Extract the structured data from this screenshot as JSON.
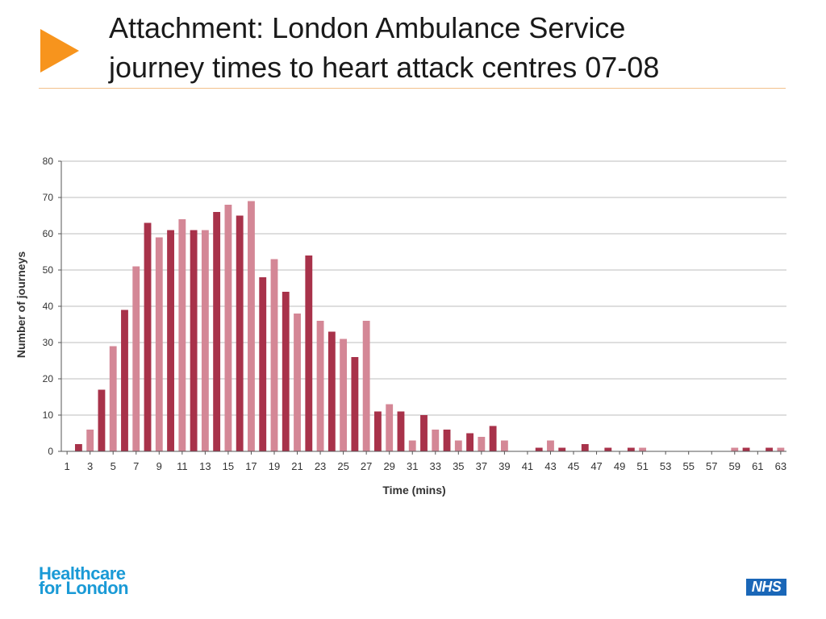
{
  "slide": {
    "title_line1": "Attachment: London Ambulance Service",
    "title_line2": "journey times to heart attack centres 07-08",
    "brand_line1": "Healthcare",
    "brand_line2": "for London",
    "nhs_logo": "NHS",
    "accent_color": "#f7941d",
    "brand_color": "#1a9ad6",
    "nhs_color": "#1a67b8"
  },
  "chart_data": {
    "type": "bar",
    "title": "",
    "xlabel": "Time (mins)",
    "ylabel": "Number of journeys",
    "ylim": [
      0,
      80
    ],
    "yticks": [
      0,
      10,
      20,
      30,
      40,
      50,
      60,
      70,
      80
    ],
    "xtick_labels": [
      "1",
      "3",
      "5",
      "7",
      "9",
      "11",
      "13",
      "15",
      "17",
      "19",
      "21",
      "23",
      "25",
      "27",
      "29",
      "31",
      "33",
      "35",
      "37",
      "39",
      "41",
      "43",
      "45",
      "47",
      "49",
      "51",
      "53",
      "55",
      "57",
      "59",
      "61",
      "63"
    ],
    "grid": true,
    "legend": "none",
    "colors": {
      "odd_minute": "#a8324a",
      "even_minute": "#d48796"
    },
    "categories": [
      1,
      2,
      3,
      4,
      5,
      6,
      7,
      8,
      9,
      10,
      11,
      12,
      13,
      14,
      15,
      16,
      17,
      18,
      19,
      20,
      21,
      22,
      23,
      24,
      25,
      26,
      27,
      28,
      29,
      30,
      31,
      32,
      33,
      34,
      35,
      36,
      37,
      38,
      39,
      40,
      41,
      42,
      43,
      44,
      45,
      46,
      47,
      48,
      49,
      50,
      51,
      52,
      53,
      54,
      55,
      56,
      57,
      58,
      59,
      60,
      61,
      62,
      63
    ],
    "values": [
      0,
      2,
      6,
      17,
      29,
      39,
      51,
      63,
      59,
      61,
      64,
      61,
      61,
      66,
      68,
      65,
      69,
      48,
      53,
      44,
      38,
      54,
      36,
      33,
      31,
      26,
      36,
      11,
      13,
      11,
      3,
      10,
      6,
      6,
      3,
      5,
      4,
      7,
      3,
      0,
      0,
      1,
      3,
      1,
      0,
      2,
      0,
      1,
      0,
      1,
      1,
      0,
      0,
      0,
      0,
      0,
      0,
      0,
      1,
      1,
      0,
      1,
      1
    ]
  }
}
